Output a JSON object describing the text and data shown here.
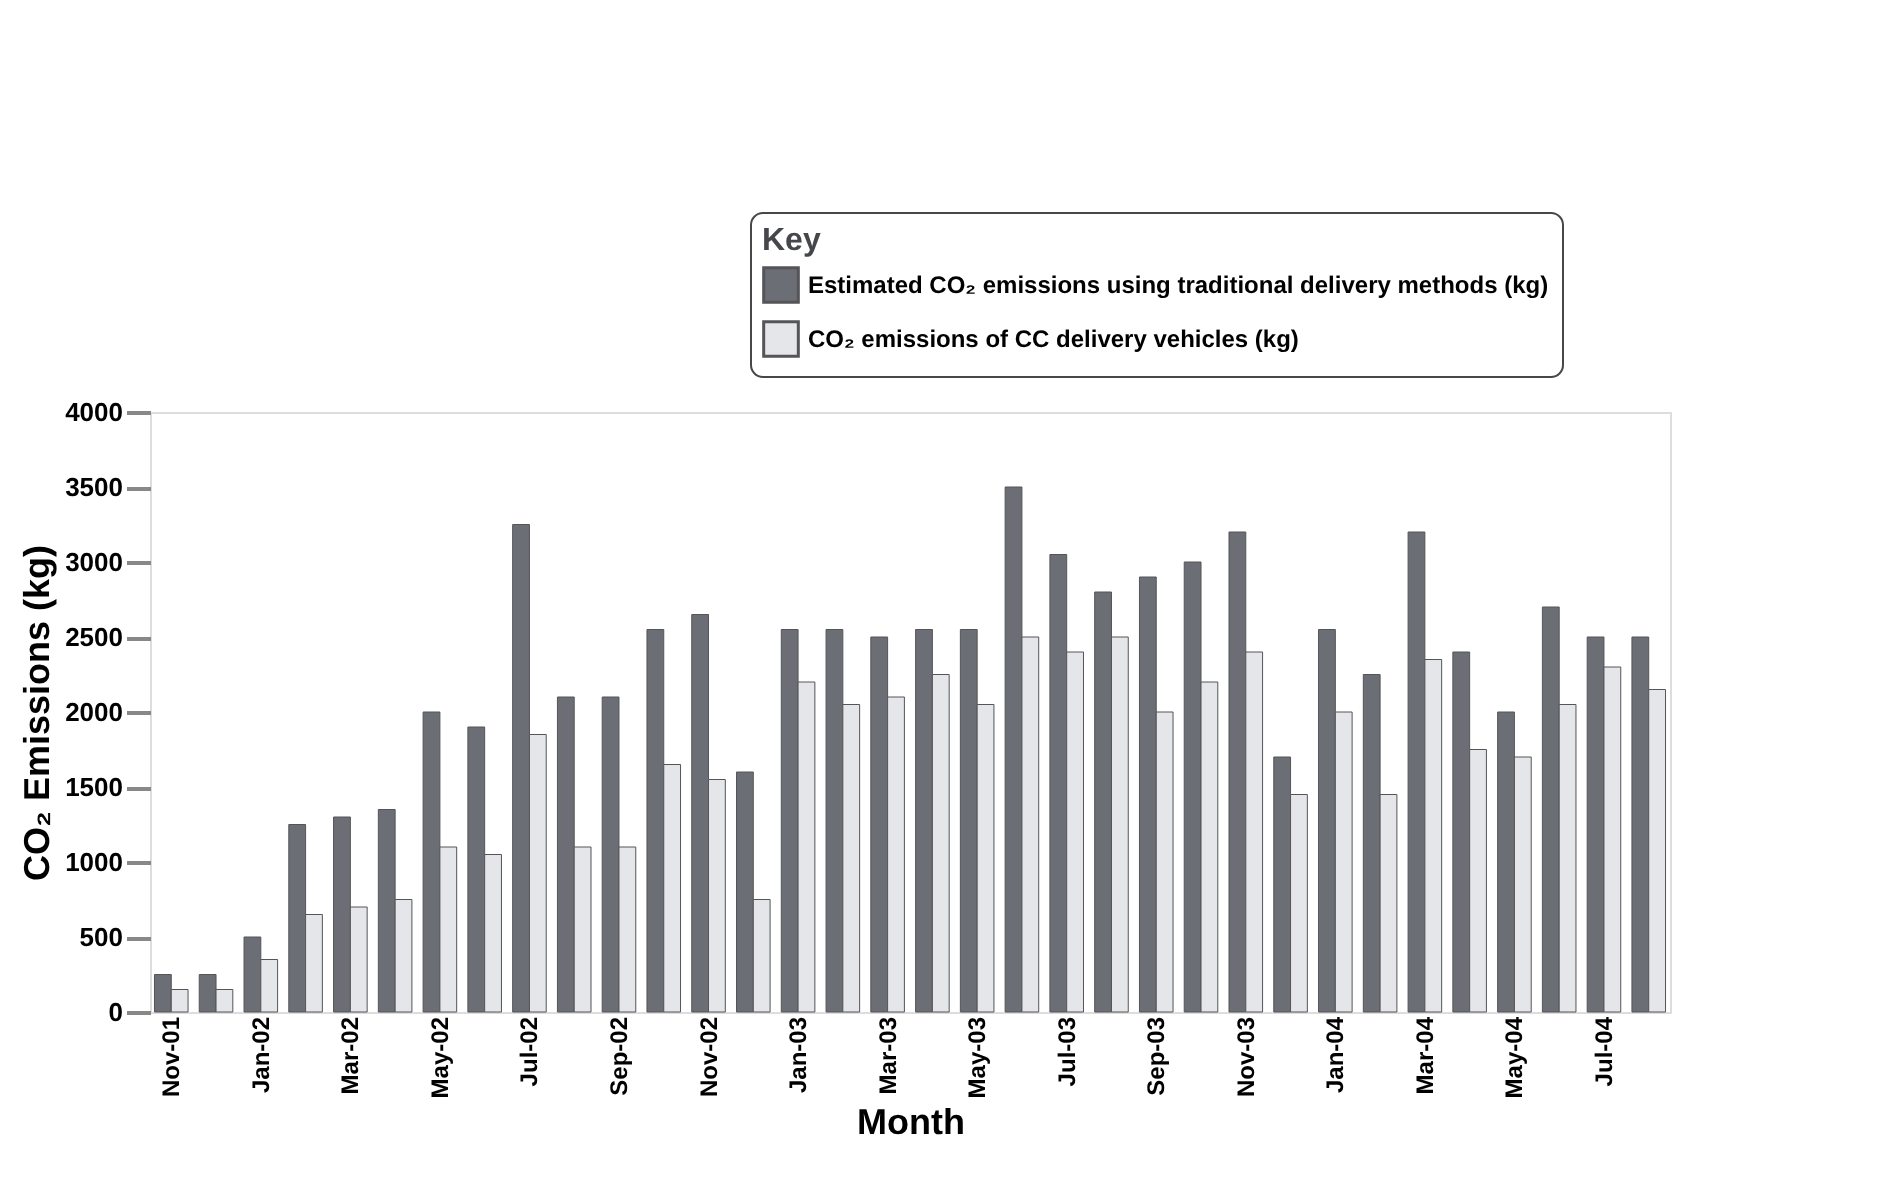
{
  "chart_data": {
    "type": "bar",
    "xlabel": "Month",
    "ylabel": "CO₂ Emissions (kg)",
    "legend_title": "Key",
    "legend": "top right",
    "grid": false,
    "categories": [
      "Nov-01",
      null,
      "Jan-02",
      null,
      "Mar-02",
      null,
      "May-02",
      null,
      "Jul-02",
      null,
      "Sep-02",
      null,
      "Nov-02",
      null,
      "Jan-03",
      null,
      "Mar-03",
      null,
      "May-03",
      null,
      "Jul-03",
      null,
      "Sep-03",
      null,
      "Nov-03",
      null,
      "Jan-04",
      null,
      "Mar-04",
      null,
      "May-04",
      null,
      "Jul-04",
      null
    ],
    "series": [
      {
        "name": "Estimated CO₂ emissions using traditional delivery methods (kg)",
        "color": "#6b6e74",
        "values": [
          250,
          250,
          500,
          1250,
          1300,
          1350,
          2000,
          1900,
          3250,
          2100,
          2100,
          2550,
          2650,
          1600,
          2550,
          2550,
          2500,
          2550,
          2550,
          3500,
          3050,
          2800,
          2900,
          3000,
          3200,
          1700,
          2550,
          2250,
          3200,
          2400,
          2000,
          2700,
          2500,
          2500
        ]
      },
      {
        "name": "CO₂ emissions of CC delivery vehicles (kg)",
        "color": "#e4e6ea",
        "values": [
          150,
          150,
          350,
          650,
          700,
          750,
          1100,
          1050,
          1850,
          1100,
          1100,
          1650,
          1550,
          750,
          2200,
          2050,
          2100,
          2250,
          2050,
          2500,
          2400,
          2500,
          2000,
          2200,
          2400,
          1450,
          2000,
          1450,
          2350,
          1750,
          1700,
          2050,
          2300,
          2150
        ]
      }
    ],
    "ylim": [
      0,
      4000
    ],
    "yticks": [
      0,
      500,
      1000,
      1500,
      2000,
      2500,
      3000,
      3500,
      4000
    ]
  }
}
